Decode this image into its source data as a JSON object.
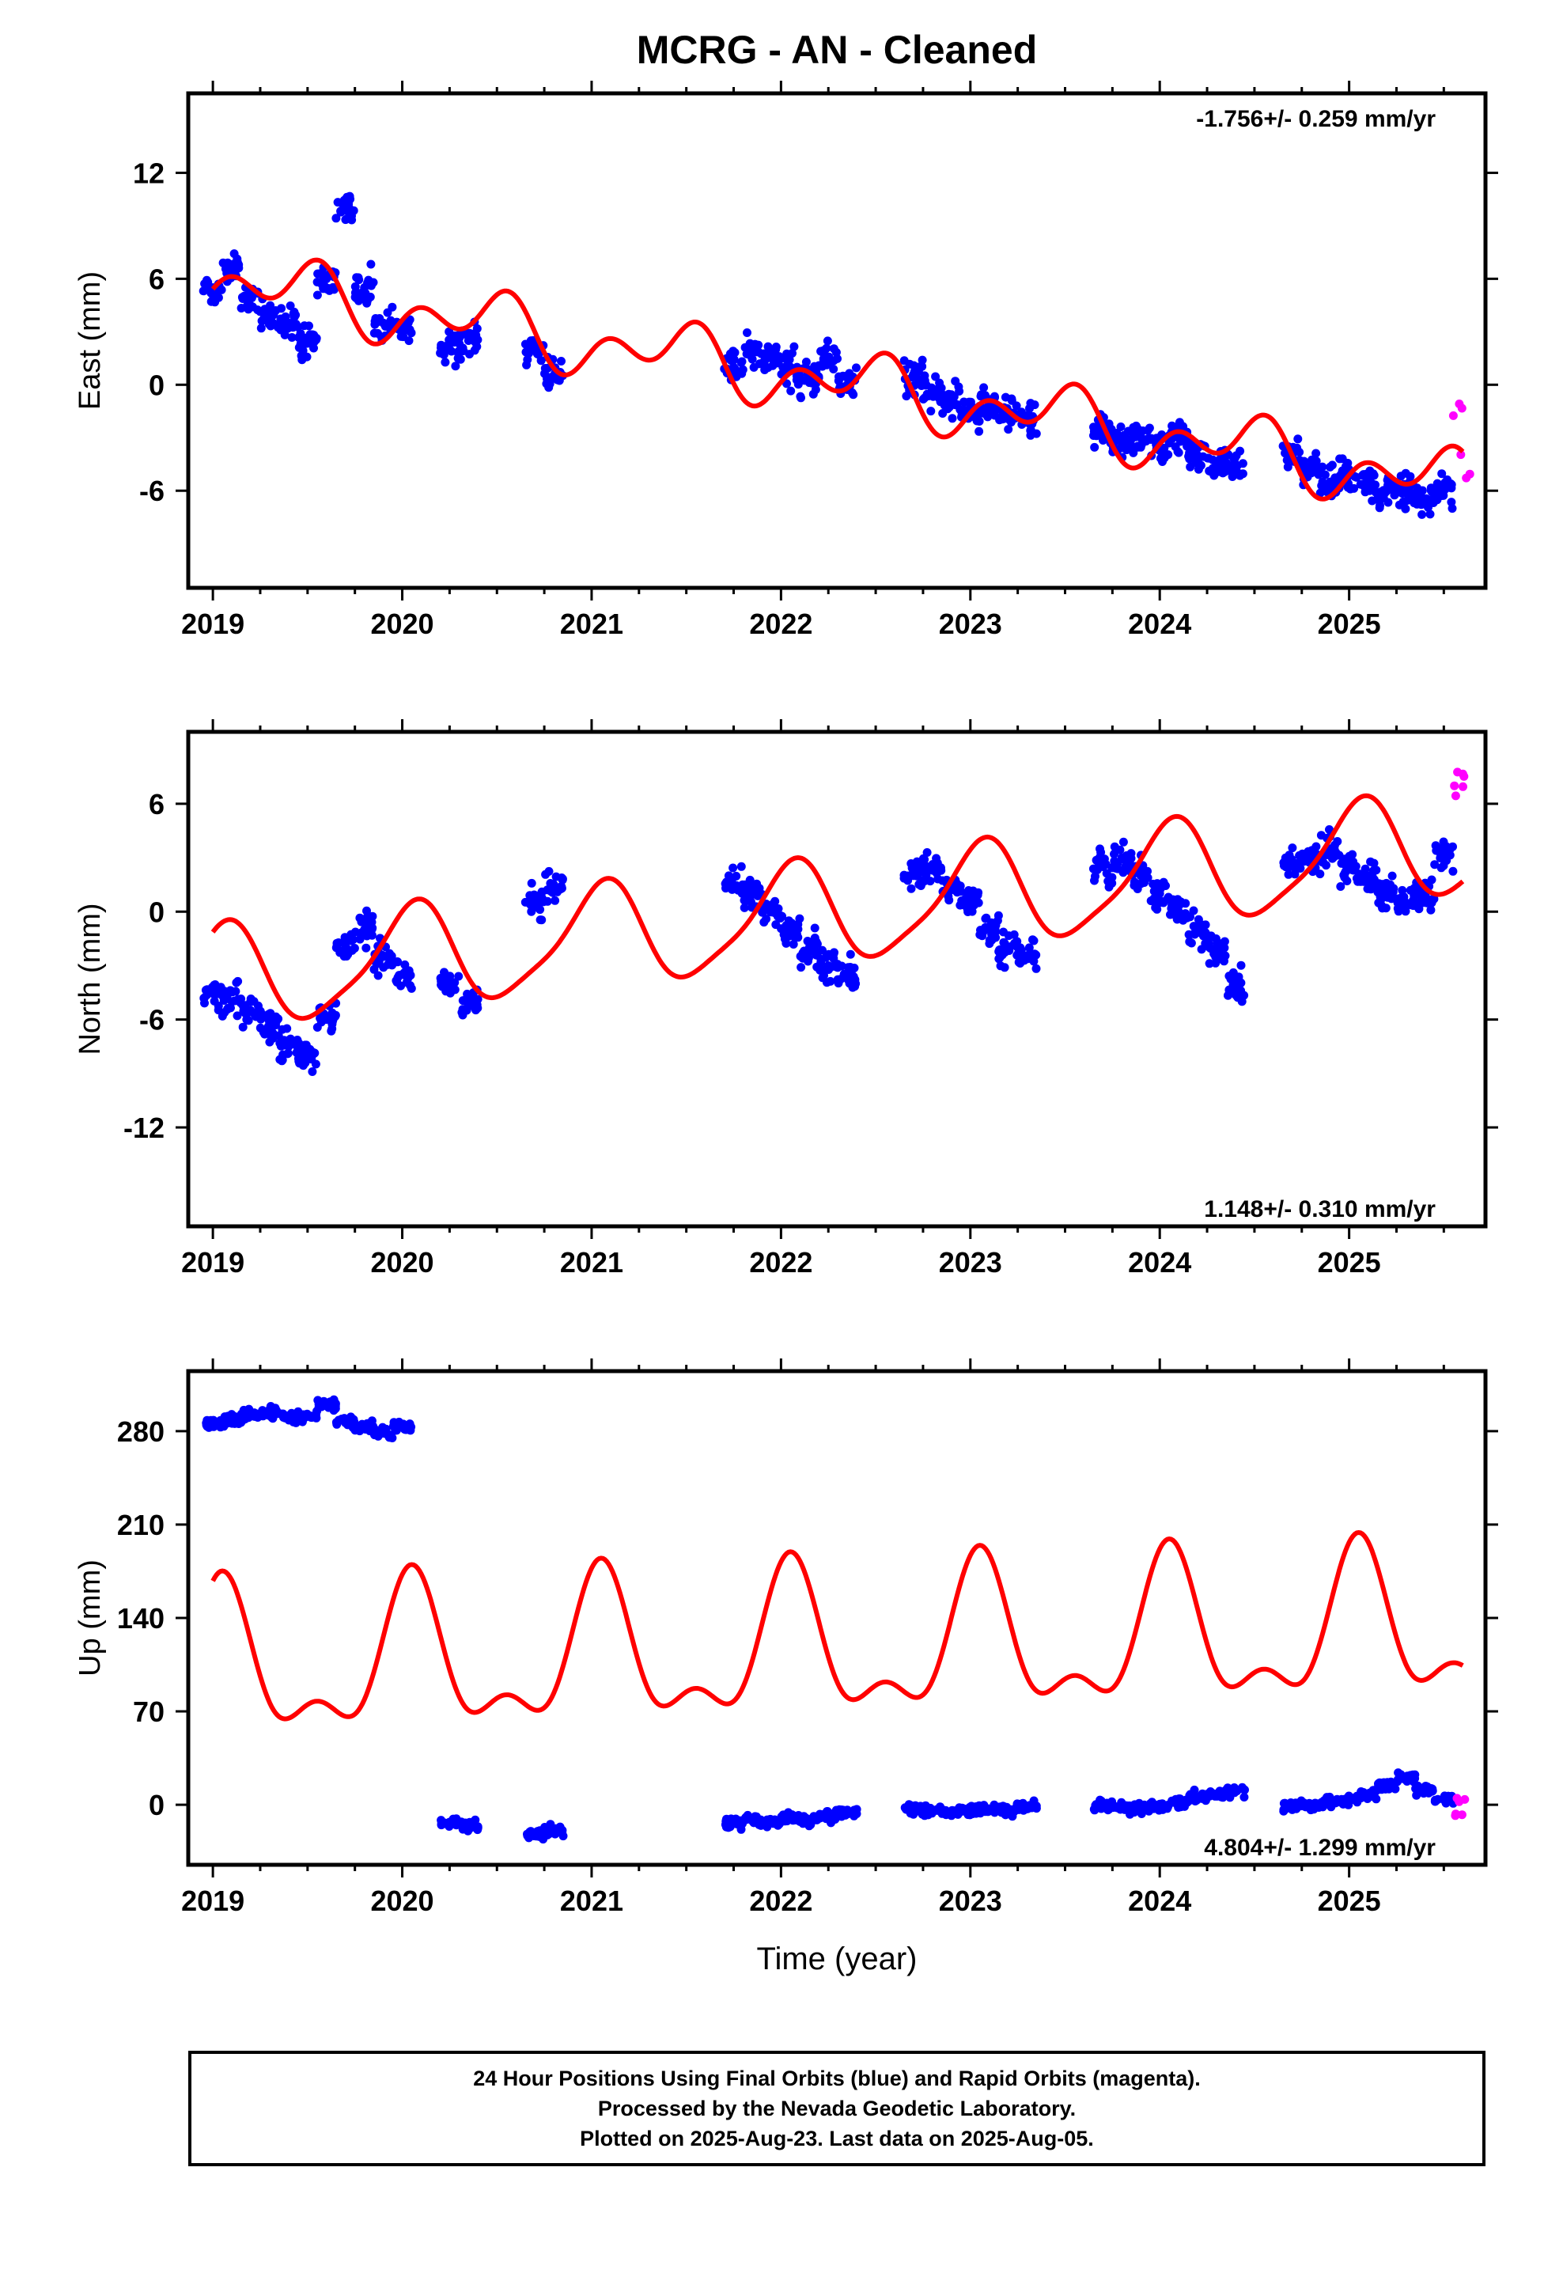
{
  "chart_data": [
    {
      "type": "scatter",
      "title": "MCRG  - AN - Cleaned",
      "xlabel": "",
      "ylabel": "East (mm)",
      "annotation": "-1.756+/- 0.259 mm/yr",
      "xlim": [
        2018.87,
        2025.72
      ],
      "ylim": [
        -11.5,
        16.5
      ],
      "yticks": [
        12,
        6,
        0,
        -6
      ],
      "xticks": [
        2019,
        2020,
        2021,
        2022,
        2023,
        2024,
        2025
      ],
      "grid": false,
      "series": [
        {
          "color": "#0000ff",
          "x": [
            2019.0,
            2019.1,
            2019.2,
            2019.3,
            2019.4,
            2019.5,
            2019.6,
            2019.7,
            2019.8,
            2019.9,
            2020.0,
            2020.25,
            2020.35,
            2020.7,
            2020.8,
            2021.75,
            2021.85,
            2021.95,
            2022.05,
            2022.15,
            2022.25,
            2022.35,
            2022.7,
            2022.8,
            2022.9,
            2023.0,
            2023.1,
            2023.2,
            2023.3,
            2023.7,
            2023.8,
            2023.9,
            2024.0,
            2024.1,
            2024.2,
            2024.3,
            2024.4,
            2024.7,
            2024.8,
            2024.9,
            2025.0,
            2025.1,
            2025.2,
            2025.3,
            2025.4,
            2025.5
          ],
          "y": [
            5.5,
            6.5,
            5.0,
            4.0,
            3.5,
            2.5,
            6.0,
            10.0,
            5.5,
            3.5,
            3.0,
            2.0,
            2.5,
            2.0,
            0.5,
            1.0,
            2.0,
            1.5,
            1.0,
            0.5,
            1.5,
            0.0,
            0.5,
            -0.5,
            -1.0,
            -1.5,
            -1.0,
            -1.5,
            -2.0,
            -2.5,
            -3.5,
            -3.0,
            -3.5,
            -3.0,
            -4.0,
            -4.5,
            -4.5,
            -4.0,
            -5.0,
            -5.5,
            -5.0,
            -5.5,
            -6.0,
            -6.0,
            -6.5,
            -6.0
          ]
        },
        {
          "color": "#ff00ff",
          "x": [
            2025.6,
            2025.6
          ],
          "y": [
            -1.2,
            -4.5
          ]
        }
      ]
    },
    {
      "type": "scatter",
      "xlabel": "",
      "ylabel": "North (mm)",
      "annotation": "1.148+/- 0.310 mm/yr",
      "xlim": [
        2018.87,
        2025.72
      ],
      "ylim": [
        -17.5,
        10
      ],
      "yticks": [
        6,
        0,
        -6,
        -12
      ],
      "xticks": [
        2019,
        2020,
        2021,
        2022,
        2023,
        2024,
        2025
      ],
      "grid": false,
      "series": [
        {
          "color": "#0000ff",
          "x": [
            2019.0,
            2019.1,
            2019.2,
            2019.3,
            2019.4,
            2019.5,
            2019.6,
            2019.7,
            2019.8,
            2019.9,
            2020.0,
            2020.25,
            2020.35,
            2020.7,
            2020.8,
            2021.75,
            2021.85,
            2021.95,
            2022.05,
            2022.15,
            2022.25,
            2022.35,
            2022.7,
            2022.8,
            2022.9,
            2023.0,
            2023.1,
            2023.2,
            2023.3,
            2023.7,
            2023.8,
            2023.9,
            2024.0,
            2024.1,
            2024.2,
            2024.3,
            2024.4,
            2024.7,
            2024.8,
            2024.9,
            2025.0,
            2025.1,
            2025.2,
            2025.3,
            2025.4,
            2025.5
          ],
          "y": [
            -4.5,
            -5.0,
            -5.5,
            -6.5,
            -7.5,
            -8.0,
            -6.0,
            -2.0,
            -1.0,
            -2.5,
            -3.5,
            -4.0,
            -5.0,
            0.5,
            1.5,
            1.5,
            1.0,
            0.0,
            -1.0,
            -2.0,
            -3.0,
            -3.5,
            2.0,
            2.5,
            1.5,
            0.5,
            -1.0,
            -2.0,
            -2.5,
            2.5,
            3.0,
            2.0,
            1.0,
            0.0,
            -1.0,
            -2.0,
            -4.0,
            2.5,
            3.0,
            3.5,
            2.5,
            2.0,
            1.0,
            0.5,
            1.0,
            3.0
          ]
        },
        {
          "color": "#ff00ff",
          "x": [
            2025.6,
            2025.6
          ],
          "y": [
            8.0,
            6.8
          ]
        }
      ]
    },
    {
      "type": "scatter",
      "xlabel": "Time (year)",
      "ylabel": "Up (mm)",
      "annotation": "4.804+/- 1.299 mm/yr",
      "xlim": [
        2018.87,
        2025.72
      ],
      "ylim": [
        -45,
        325
      ],
      "yticks": [
        280,
        210,
        140,
        70,
        0
      ],
      "xticks": [
        2019,
        2020,
        2021,
        2022,
        2023,
        2024,
        2025
      ],
      "grid": false,
      "series": [
        {
          "color": "#0000ff",
          "x": [
            2019.0,
            2019.1,
            2019.2,
            2019.3,
            2019.4,
            2019.5,
            2019.6,
            2019.7,
            2019.8,
            2019.9,
            2020.0,
            2020.25,
            2020.35,
            2020.7,
            2020.8,
            2021.75,
            2021.85,
            2021.95,
            2022.05,
            2022.15,
            2022.25,
            2022.35,
            2022.7,
            2022.8,
            2022.9,
            2023.0,
            2023.1,
            2023.2,
            2023.3,
            2023.7,
            2023.8,
            2023.9,
            2024.0,
            2024.1,
            2024.2,
            2024.3,
            2024.4,
            2024.7,
            2024.8,
            2024.9,
            2025.0,
            2025.1,
            2025.2,
            2025.3,
            2025.4,
            2025.5
          ],
          "y": [
            285,
            288,
            292,
            294,
            290,
            291,
            300,
            287,
            283,
            279,
            283,
            -13,
            -15,
            -22,
            -19,
            -14,
            -12,
            -13,
            -10,
            -11,
            -8,
            -6,
            -3,
            -5,
            -6,
            -4,
            -3,
            -4,
            -1,
            0,
            -2,
            -3,
            -1,
            2,
            6,
            8,
            10,
            -1,
            0,
            2,
            3,
            8,
            14,
            20,
            12,
            4
          ]
        },
        {
          "color": "#ff00ff",
          "x": [
            2025.6,
            2025.6
          ],
          "y": [
            3,
            -8
          ]
        }
      ]
    }
  ],
  "footer": {
    "line1": "24 Hour Positions Using Final Orbits (blue) and Rapid Orbits (magenta).",
    "line2": "Processed by the Nevada Geodetic Laboratory.",
    "line3": "Plotted on 2025-Aug-23. Last data on 2025-Aug-05."
  }
}
